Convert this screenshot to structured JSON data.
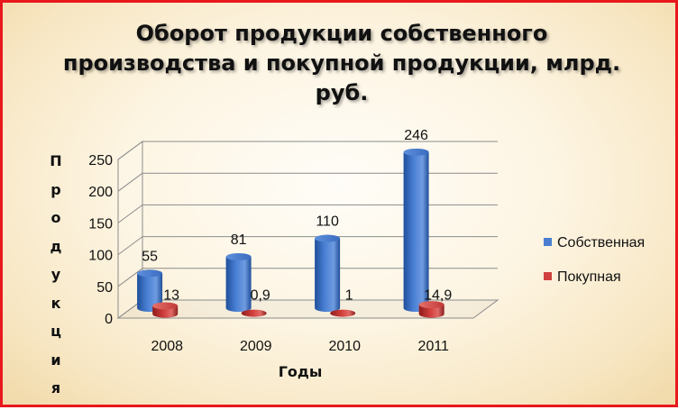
{
  "title": "Оборот продукции собственного производства и покупной продукции, млрд. руб.",
  "colors": {
    "own": "#4a7fd0",
    "bought": "#d0403f",
    "border": "#e8181c"
  },
  "chart_data": {
    "type": "bar",
    "title": "Оборот продукции собственного производства и покупной продукции, млрд. руб.",
    "xlabel": "Годы",
    "ylabel": "Продукция",
    "categories": [
      "2008",
      "2009",
      "2010",
      "2011"
    ],
    "ylim": [
      0,
      250
    ],
    "yticks": [
      0,
      50,
      100,
      150,
      200,
      250
    ],
    "grid": true,
    "legend_position": "right",
    "series": [
      {
        "name": "Собственная",
        "values": [
          55,
          81,
          110,
          246
        ],
        "labels": [
          "55",
          "81",
          "110",
          "246"
        ]
      },
      {
        "name": "Покупная",
        "values": [
          13,
          0.9,
          1,
          14.9
        ],
        "labels": [
          "13",
          "0,9",
          "1",
          "14,9"
        ]
      }
    ]
  }
}
